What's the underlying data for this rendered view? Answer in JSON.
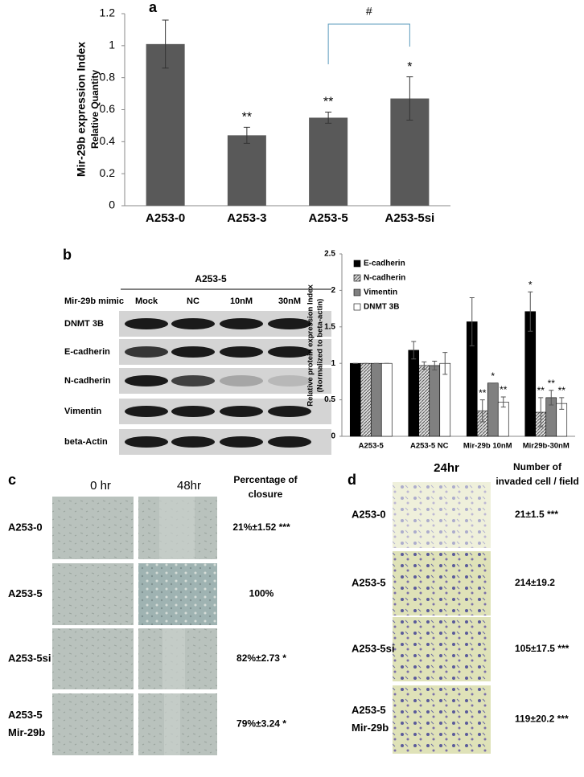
{
  "chart_data": [
    {
      "type": "bar",
      "panel": "a",
      "ylabel": [
        "Mir-29b expression Index",
        "Relative Quantity"
      ],
      "categories": [
        "A253-0",
        "A253-3",
        "A253-5",
        "A253-5si"
      ],
      "values": [
        1.01,
        0.44,
        0.55,
        0.67
      ],
      "errors": [
        0.15,
        0.05,
        0.035,
        0.135
      ],
      "value_annotations": [
        null,
        "**",
        "**",
        "*"
      ],
      "bracket_label": "#",
      "color": "#595959",
      "ylim": [
        0,
        1.2
      ],
      "yticks": [
        0,
        0.2,
        0.4,
        0.6,
        0.8,
        1,
        1.2
      ]
    },
    {
      "type": "grouped-bar",
      "ylabel": [
        "Relative protein expression Index",
        "(Normalized to beta-actin)"
      ],
      "categories": [
        "A253-5",
        "A253-5 NC",
        "Mir-29b 10nM",
        "Mir29b-30nM"
      ],
      "series": [
        {
          "name": "E-cadherin",
          "color": "#000000",
          "values": [
            1.0,
            1.18,
            1.57,
            1.71
          ],
          "errors": [
            0,
            0.12,
            0.33,
            0.27
          ],
          "annotations": [
            null,
            null,
            null,
            "*"
          ]
        },
        {
          "name": "N-cadherin",
          "color": "#a6a6a6",
          "hatch": true,
          "values": [
            1.0,
            0.97,
            0.35,
            0.33
          ],
          "errors": [
            0,
            0.05,
            0.15,
            0.2
          ],
          "annotations": [
            null,
            null,
            "**",
            "**"
          ]
        },
        {
          "name": "Vimentin",
          "color": "#808080",
          "values": [
            1.0,
            0.97,
            0.73,
            0.53
          ],
          "errors": [
            0,
            0.06,
            0,
            0.1
          ],
          "annotations": [
            null,
            null,
            "*",
            "**"
          ]
        },
        {
          "name": "DNMT 3B",
          "color": "#ffffff",
          "values": [
            1.0,
            1.0,
            0.47,
            0.45
          ],
          "errors": [
            0,
            0.15,
            0.07,
            0.08
          ],
          "annotations": [
            null,
            null,
            "**",
            "**"
          ]
        }
      ],
      "ylim": [
        0,
        2.5
      ],
      "yticks": [
        0,
        0.5,
        1,
        1.5,
        2,
        2.5
      ],
      "legend": "top-left"
    }
  ],
  "blot": {
    "panel": "b",
    "title": "A253-5",
    "treatment_label": "Mir-29b mimic",
    "columns": [
      "Mock",
      "NC",
      "10nM",
      "30nM"
    ],
    "rows": [
      "DNMT 3B",
      "E-cadherin",
      "N-cadherin",
      "Vimentin",
      "beta-Actin"
    ]
  },
  "wound": {
    "panel": "c",
    "columns": [
      "0 hr",
      "48hr"
    ],
    "result_header": [
      "Percentage of",
      "closure"
    ],
    "rows": [
      {
        "label": "A253-0",
        "result": "21%±1.52 ***"
      },
      {
        "label": "A253-5",
        "result": "100%"
      },
      {
        "label": "A253-5si",
        "result": "82%±2.73 *"
      },
      {
        "label": [
          "A253-5",
          "Mir-29b"
        ],
        "result": "79%±3.24 *"
      }
    ]
  },
  "invasion": {
    "panel": "d",
    "column": "24hr",
    "result_header": [
      "Number of",
      "invaded cell / field"
    ],
    "rows": [
      {
        "label": "A253-0",
        "result": "21±1.5 ***"
      },
      {
        "label": "A253-5",
        "result": "214±19.2"
      },
      {
        "label": "A253-5si",
        "result": "105±17.5 ***"
      },
      {
        "label": [
          "A253-5",
          "Mir-29b"
        ],
        "result": "119±20.2 ***"
      }
    ]
  }
}
